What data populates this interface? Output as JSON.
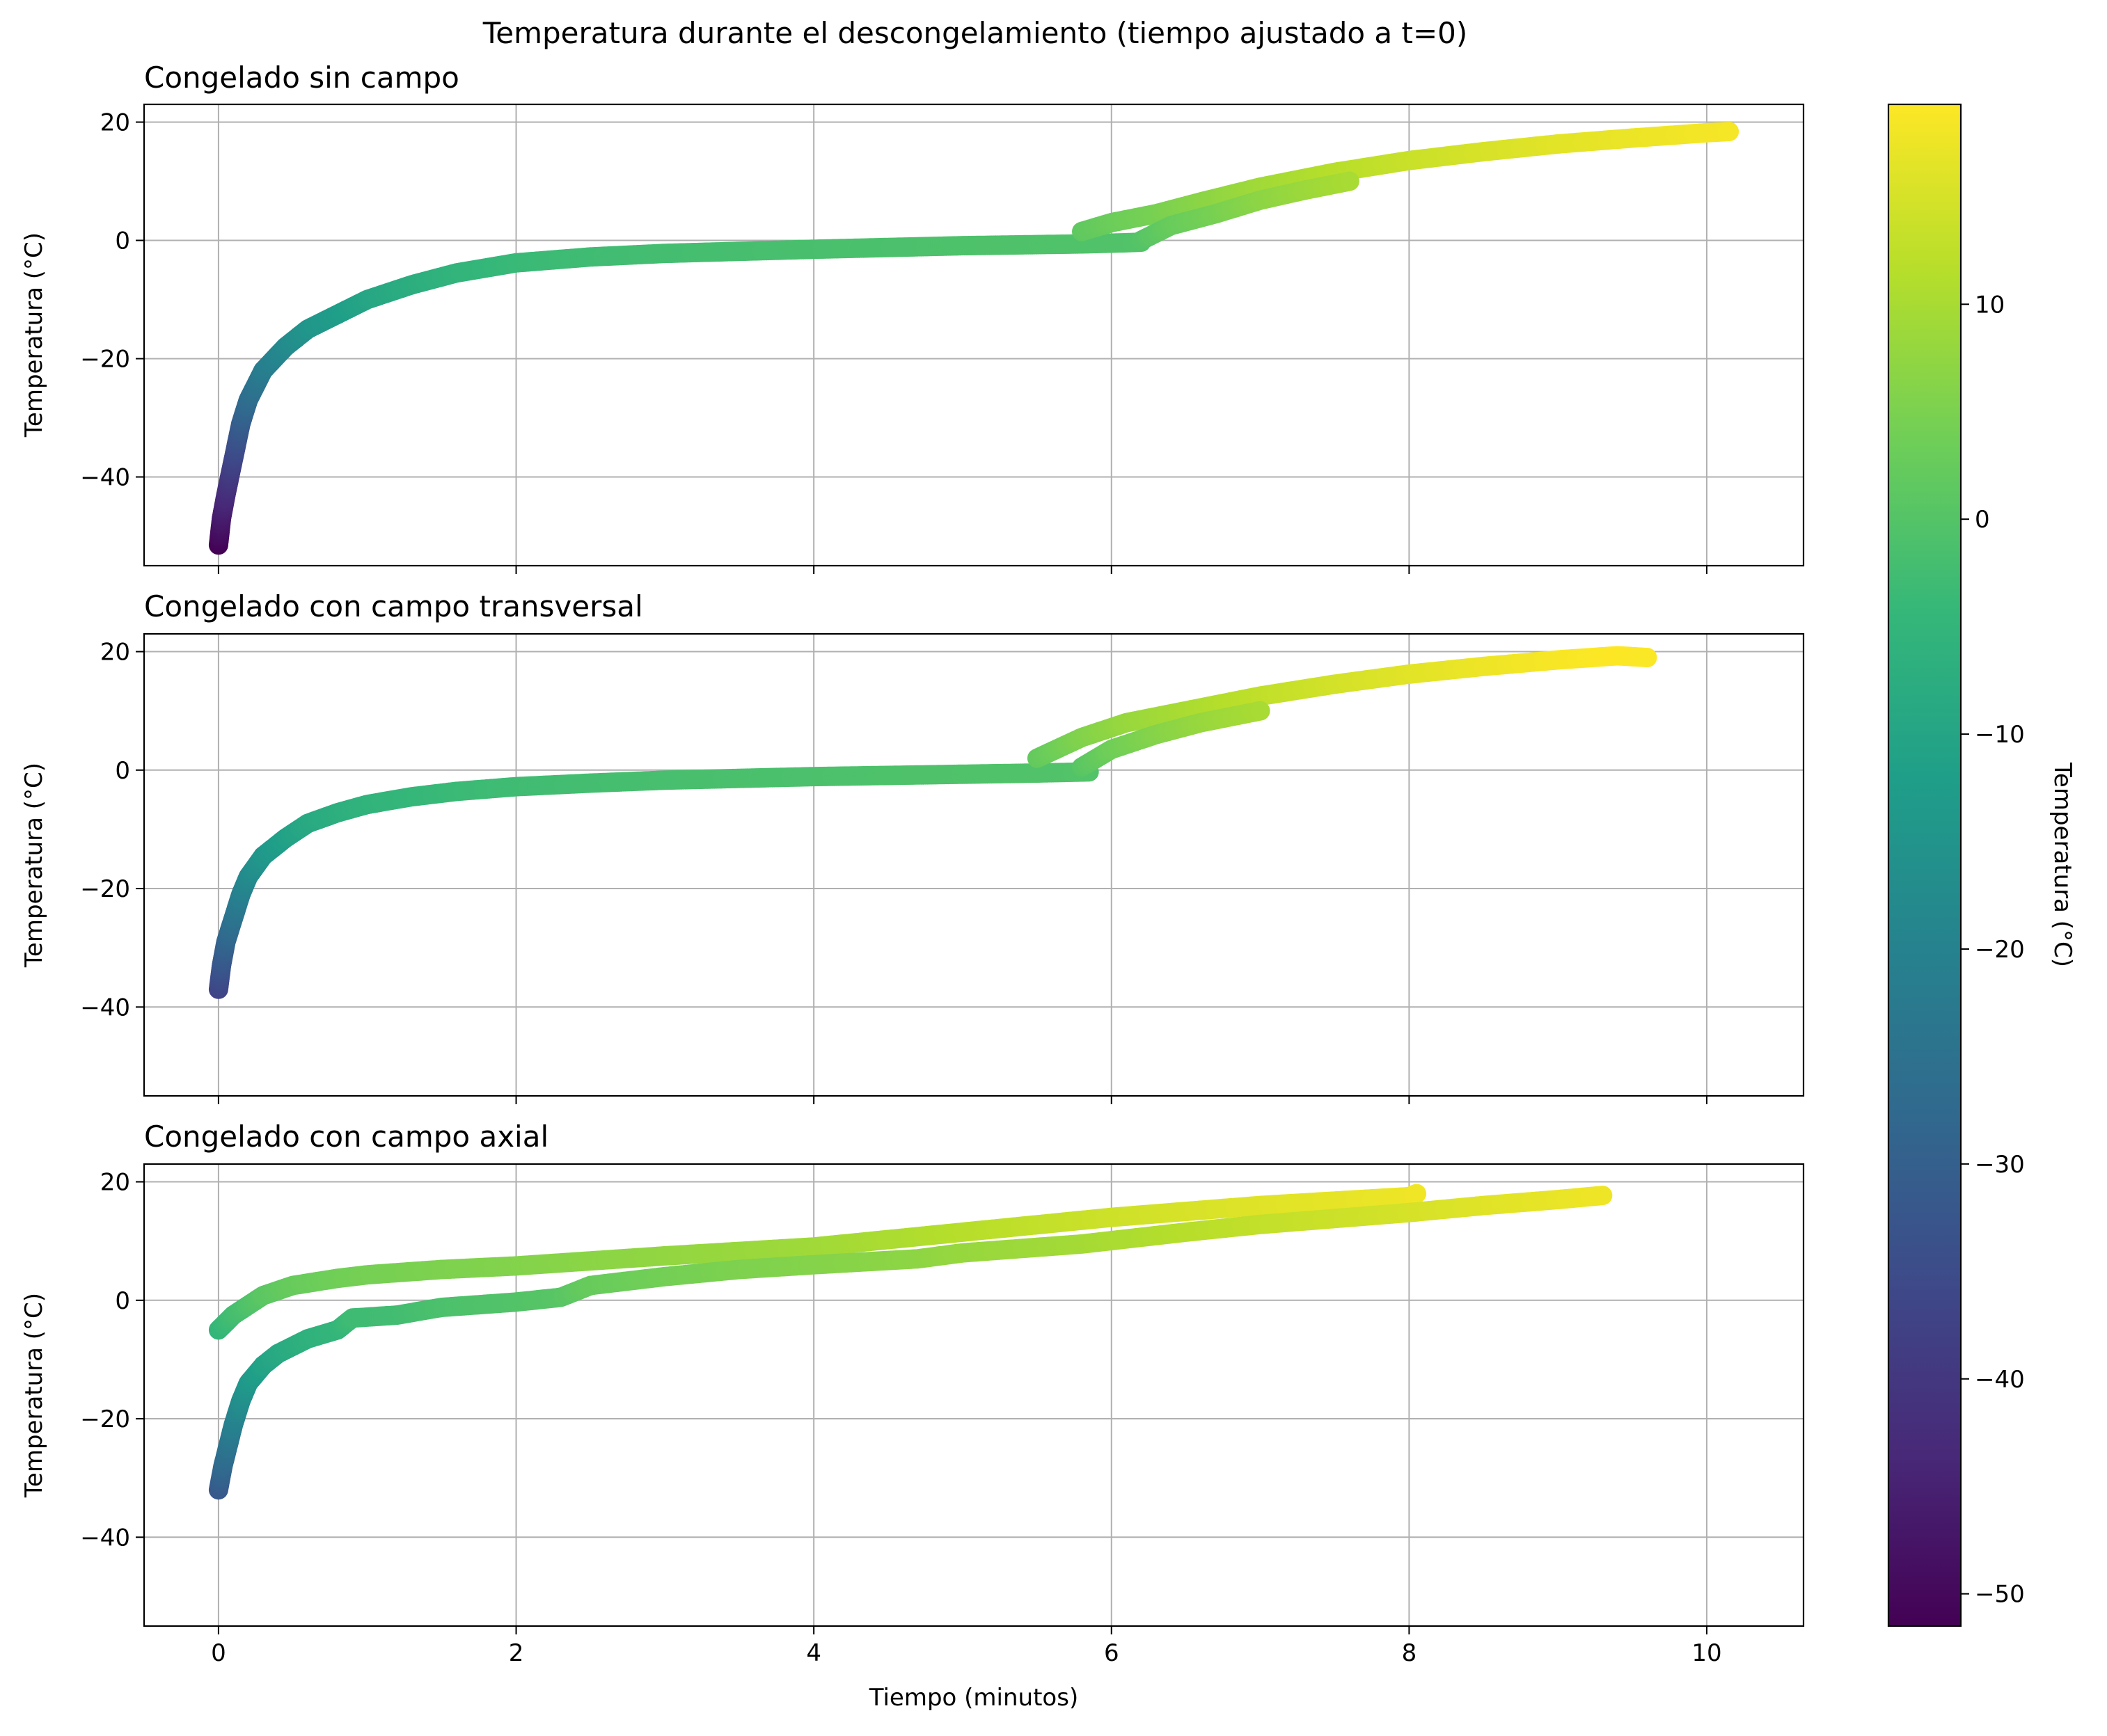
{
  "figure": {
    "suptitle": "Temperatura durante el descongelamiento (tiempo ajustado a t=0)",
    "xlabel": "Tiempo (minutos)"
  },
  "colorbar": {
    "label": "Temperatura (°C)",
    "colormap": "viridis",
    "range": [
      -51.5,
      19.3
    ],
    "ticks": [
      10,
      0,
      -10,
      -20,
      -30,
      -40,
      -50
    ],
    "tick_labels": [
      "10",
      "0",
      "−10",
      "−20",
      "−30",
      "−40",
      "−50"
    ],
    "stops": [
      "#440154",
      "#482878",
      "#3e4989",
      "#31688e",
      "#26828e",
      "#1f9e89",
      "#35b779",
      "#6ece58",
      "#b5de2b",
      "#fde725"
    ]
  },
  "axes": {
    "xlim": [
      -0.5,
      10.65
    ],
    "ylim": [
      -55,
      23
    ],
    "xticks": [
      0,
      2,
      4,
      6,
      8,
      10
    ],
    "xtick_labels": [
      "0",
      "2",
      "4",
      "6",
      "8",
      "10"
    ],
    "yticks": [
      20,
      0,
      -20,
      -40
    ],
    "ytick_labels": [
      "20",
      "0",
      "−20",
      "−40"
    ],
    "ylabel": "Temperatura (°C)",
    "grid": true,
    "grid_color": "#b0b0b0"
  },
  "chart_data": [
    {
      "type": "scatter",
      "title": "Congelado sin campo",
      "series": [
        {
          "x": [
            0,
            0.02,
            0.05,
            0.1,
            0.15,
            0.2,
            0.3,
            0.45,
            0.6,
            0.8,
            1.0,
            1.3,
            1.6,
            2.0,
            2.5,
            3.0,
            4.0,
            5.0,
            5.8,
            6.1,
            6.2
          ],
          "y": [
            -51.5,
            -47,
            -43,
            -37,
            -31,
            -27,
            -22,
            -18,
            -15,
            -12.5,
            -10,
            -7.5,
            -5.5,
            -3.8,
            -2.8,
            -2.2,
            -1.5,
            -0.9,
            -0.6,
            -0.4,
            -0.3
          ]
        },
        {
          "x": [
            5.8,
            6.0,
            6.3,
            6.6,
            7.0,
            7.5,
            8.0,
            8.5,
            9.0,
            9.5,
            10.0,
            10.15
          ],
          "y": [
            1.5,
            3.0,
            4.5,
            6.5,
            9.0,
            11.5,
            13.5,
            15,
            16.3,
            17.3,
            18.2,
            18.4
          ]
        },
        {
          "x": [
            6.2,
            6.4,
            6.7,
            7.0,
            7.3,
            7.6
          ],
          "y": [
            0,
            2.5,
            4.5,
            6.8,
            8.5,
            10.0
          ]
        }
      ]
    },
    {
      "type": "scatter",
      "title": "Congelado con campo transversal",
      "series": [
        {
          "x": [
            0,
            0.02,
            0.05,
            0.1,
            0.15,
            0.2,
            0.3,
            0.45,
            0.6,
            0.8,
            1.0,
            1.3,
            1.6,
            2.0,
            2.5,
            3.0,
            4.0,
            5.0,
            5.5,
            5.85
          ],
          "y": [
            -37,
            -33,
            -29,
            -25,
            -21,
            -18,
            -14.5,
            -11.5,
            -9,
            -7.2,
            -5.8,
            -4.5,
            -3.6,
            -2.8,
            -2.2,
            -1.7,
            -1.1,
            -0.7,
            -0.5,
            -0.3
          ]
        },
        {
          "x": [
            5.5,
            5.8,
            6.1,
            6.5,
            7.0,
            7.5,
            8.0,
            8.5,
            9.0,
            9.4,
            9.6
          ],
          "y": [
            2,
            5.5,
            8,
            10,
            12.5,
            14.5,
            16.2,
            17.5,
            18.6,
            19.3,
            19.0
          ]
        },
        {
          "x": [
            5.8,
            6.0,
            6.3,
            6.6,
            7.0
          ],
          "y": [
            0.5,
            3.5,
            6,
            8,
            10
          ]
        }
      ]
    },
    {
      "type": "scatter",
      "title": "Congelado con campo axial",
      "series": [
        {
          "x": [
            0,
            0.1,
            0.3,
            0.5,
            0.8,
            1.0,
            1.5,
            2.0,
            3.0,
            4.0,
            5.0,
            6.0,
            7.0,
            8.0,
            8.05
          ],
          "y": [
            -5,
            -2.5,
            0.8,
            2.5,
            3.7,
            4.3,
            5.2,
            5.8,
            7.5,
            9.0,
            11.5,
            14,
            16,
            17.5,
            18
          ]
        },
        {
          "x": [
            0,
            0.03,
            0.06,
            0.1,
            0.15,
            0.2,
            0.3,
            0.4,
            0.6,
            0.8,
            0.9,
            1.2,
            1.5,
            2.0,
            2.3,
            2.5,
            3.0,
            3.5,
            4.0,
            4.7,
            5.0,
            5.8,
            6.5,
            7.0,
            8.0,
            8.5,
            9.0,
            9.3
          ],
          "y": [
            -32,
            -28,
            -25,
            -21,
            -17,
            -14,
            -11,
            -9,
            -6.5,
            -5,
            -3,
            -2.5,
            -1.2,
            -0.3,
            0.5,
            2.5,
            4,
            5.2,
            6,
            7,
            8,
            9.5,
            11.5,
            12.8,
            14.8,
            16,
            17,
            17.7
          ]
        }
      ]
    }
  ]
}
